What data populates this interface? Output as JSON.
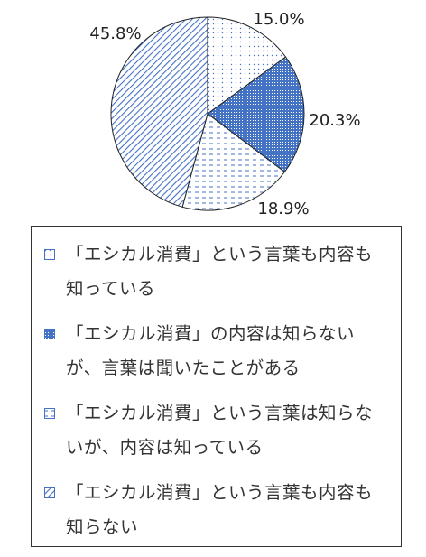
{
  "chart_data": {
    "type": "pie",
    "title": "",
    "slices": [
      {
        "label": "「エシカル消費」という言葉も内容も知っている",
        "value": 15.0,
        "value_label": "15.0%",
        "pattern": "dots-light",
        "color": "#4472C4"
      },
      {
        "label": "「エシカル消費」の内容は知らないが、言葉は聞いたことがある",
        "value": 20.3,
        "value_label": "20.3%",
        "pattern": "dots-dense",
        "color": "#4472C4"
      },
      {
        "label": "「エシカル消費」という言葉は知らないが、内容は知っている",
        "value": 18.9,
        "value_label": "18.9%",
        "pattern": "dashes",
        "color": "#4472C4"
      },
      {
        "label": "「エシカル消費」という言葉も内容も知らない",
        "value": 45.8,
        "value_label": "45.8%",
        "pattern": "diagonal",
        "color": "#4472C4"
      }
    ],
    "start_angle": "12 o'clock",
    "direction": "clockwise",
    "legend_position": "bottom"
  }
}
